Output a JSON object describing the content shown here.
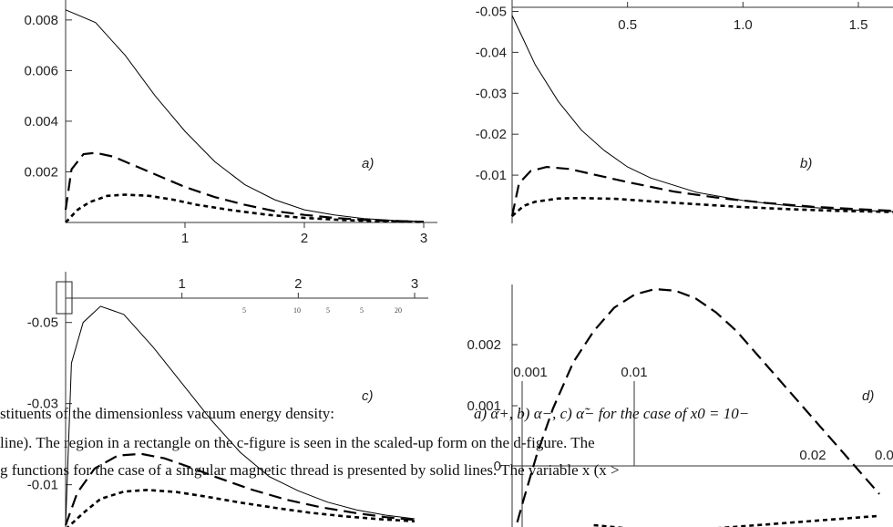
{
  "chart_data": [
    {
      "panel": "a)",
      "type": "line",
      "xlim": [
        0,
        3
      ],
      "ylim": [
        0,
        0.0085
      ],
      "xticks": [
        "1",
        "2",
        "3"
      ],
      "yticks": [
        "0.002",
        "0.004",
        "0.006",
        "0.008"
      ],
      "series": [
        {
          "style": "solid",
          "x": [
            0,
            0.25,
            0.5,
            0.75,
            1,
            1.25,
            1.5,
            1.75,
            2,
            2.25,
            2.5,
            2.75,
            3
          ],
          "y": [
            0.0084,
            0.0079,
            0.0066,
            0.005,
            0.0036,
            0.0024,
            0.0015,
            0.0009,
            0.0005,
            0.0003,
            0.00015,
            8e-05,
            4e-05
          ]
        },
        {
          "style": "dashed",
          "x": [
            0,
            0.05,
            0.15,
            0.25,
            0.4,
            0.6,
            0.8,
            1,
            1.25,
            1.5,
            1.75,
            2,
            2.25,
            2.5,
            2.75,
            3
          ],
          "y": [
            0.0005,
            0.0021,
            0.0027,
            0.00275,
            0.0026,
            0.0022,
            0.0018,
            0.0014,
            0.001,
            0.0007,
            0.00045,
            0.0003,
            0.00018,
            0.0001,
            6e-05,
            3e-05
          ]
        },
        {
          "style": "dotted",
          "x": [
            0,
            0.1,
            0.2,
            0.35,
            0.5,
            0.7,
            0.9,
            1.1,
            1.4,
            1.7,
            2,
            2.3,
            2.6,
            3
          ],
          "y": [
            0,
            0.0005,
            0.0008,
            0.00105,
            0.0011,
            0.00105,
            0.0009,
            0.0007,
            0.00048,
            0.0003,
            0.00018,
            0.0001,
            5e-05,
            2e-05
          ]
        }
      ]
    },
    {
      "panel": "b)",
      "type": "line",
      "xlim": [
        0,
        1.65
      ],
      "ylim": [
        -0.051,
        0
      ],
      "xticks": [
        "0.5",
        "1.0",
        "1.5"
      ],
      "yticks": [
        "-0.01",
        "-0.02",
        "-0.03",
        "-0.04",
        "-0.05"
      ],
      "series": [
        {
          "style": "solid",
          "x": [
            0,
            0.05,
            0.1,
            0.2,
            0.3,
            0.4,
            0.5,
            0.6,
            0.8,
            1,
            1.2,
            1.4,
            1.65
          ],
          "y": [
            -0.049,
            -0.043,
            -0.037,
            -0.028,
            -0.021,
            -0.016,
            -0.012,
            -0.0093,
            -0.0058,
            -0.0038,
            -0.0025,
            -0.0017,
            -0.0011
          ]
        },
        {
          "style": "dashed",
          "x": [
            0,
            0.03,
            0.08,
            0.15,
            0.25,
            0.35,
            0.5,
            0.7,
            0.9,
            1.1,
            1.3,
            1.5,
            1.65
          ],
          "y": [
            0,
            -0.008,
            -0.011,
            -0.012,
            -0.0115,
            -0.0102,
            -0.0083,
            -0.006,
            -0.0044,
            -0.0032,
            -0.0023,
            -0.0017,
            -0.0013
          ]
        },
        {
          "style": "dotted",
          "x": [
            0,
            0.05,
            0.1,
            0.2,
            0.3,
            0.45,
            0.6,
            0.8,
            1,
            1.2,
            1.4,
            1.65
          ],
          "y": [
            0,
            -0.0025,
            -0.0035,
            -0.0043,
            -0.0044,
            -0.0042,
            -0.0036,
            -0.0029,
            -0.0022,
            -0.0017,
            -0.0013,
            -0.001
          ]
        }
      ]
    },
    {
      "panel": "c)",
      "type": "line",
      "xlim": [
        0,
        3
      ],
      "ylim": [
        -0.056,
        0.002
      ],
      "xticks": [
        "1",
        "2",
        "3"
      ],
      "yticks": [
        "-0.01",
        "-0.03",
        "-0.05"
      ],
      "series": [
        {
          "style": "solid",
          "x": [
            0,
            0.05,
            0.15,
            0.3,
            0.5,
            0.75,
            1,
            1.25,
            1.5,
            1.75,
            2,
            2.25,
            2.5,
            2.75,
            3
          ],
          "y": [
            0,
            -0.04,
            -0.05,
            -0.054,
            -0.052,
            -0.044,
            -0.035,
            -0.026,
            -0.018,
            -0.012,
            -0.0085,
            -0.0057,
            -0.0038,
            -0.0025,
            -0.0016
          ]
        },
        {
          "style": "dashed",
          "x": [
            0,
            0.1,
            0.25,
            0.45,
            0.65,
            0.85,
            1.05,
            1.3,
            1.6,
            1.9,
            2.2,
            2.5,
            2.75,
            3
          ],
          "y": [
            0,
            -0.008,
            -0.014,
            -0.0172,
            -0.0176,
            -0.0165,
            -0.0145,
            -0.0118,
            -0.0088,
            -0.0063,
            -0.0044,
            -0.003,
            -0.002,
            -0.0013
          ]
        },
        {
          "style": "dotted",
          "x": [
            0,
            0.15,
            0.3,
            0.5,
            0.7,
            0.95,
            1.2,
            1.5,
            1.8,
            2.1,
            2.4,
            2.7,
            3
          ],
          "y": [
            0.001,
            -0.003,
            -0.0065,
            -0.0083,
            -0.0087,
            -0.0082,
            -0.0071,
            -0.0056,
            -0.0043,
            -0.0031,
            -0.0022,
            -0.0015,
            -0.001
          ]
        }
      ]
    },
    {
      "panel": "d)",
      "type": "line",
      "xlim": [
        0,
        0.028
      ],
      "ylim": [
        -0.0004,
        0.0029
      ],
      "yticks": [
        "0.002",
        "0.001",
        "0"
      ],
      "xticks": [
        "0.02",
        "0.0"
      ],
      "inner_markers": [
        "0.001",
        "0.01"
      ],
      "series": [
        {
          "style": "dashed",
          "x": [
            0,
            0.0008,
            0.0018,
            0.003,
            0.0045,
            0.006,
            0.0075,
            0.009,
            0.0105,
            0.012,
            0.0135,
            0.015,
            0.0165,
            0.018,
            0.0195,
            0.021,
            0.0225,
            0.024,
            0.0255,
            0.027
          ],
          "y": [
            -0.0004,
            0.0001,
            0.0007,
            0.0013,
            0.0019,
            0.0023,
            0.0026,
            0.00277,
            0.00284,
            0.00282,
            0.00272,
            0.00254,
            0.0023,
            0.002,
            0.0017,
            0.0014,
            0.0011,
            0.0008,
            0.0005,
            0.0002
          ]
        },
        {
          "style": "dotted",
          "x": [
            0.006,
            0.009,
            0.012,
            0.015,
            0.018,
            0.021,
            0.024,
            0.027
          ],
          "y": [
            -0.0002,
            -0.00025,
            -0.00026,
            -0.00024,
            -0.0002,
            -0.00016,
            -0.00012,
            -8e-05
          ]
        }
      ]
    }
  ],
  "caption": {
    "line1": "stituents of the dimensionless vacuum energy density:",
    "line1b": "a) α+, b) α−, c) α̃− for the case of x0 = 10−",
    "line2": "line). The region in a rectangle on the c-figure is seen in the scaled-up form on the d-figure. The",
    "line3": "g functions for the case of a singular magnetic thread is presented by solid lines. The variable x (x >"
  },
  "c_tiny_labels": [
    "5",
    "10",
    "5",
    "5",
    "20"
  ]
}
